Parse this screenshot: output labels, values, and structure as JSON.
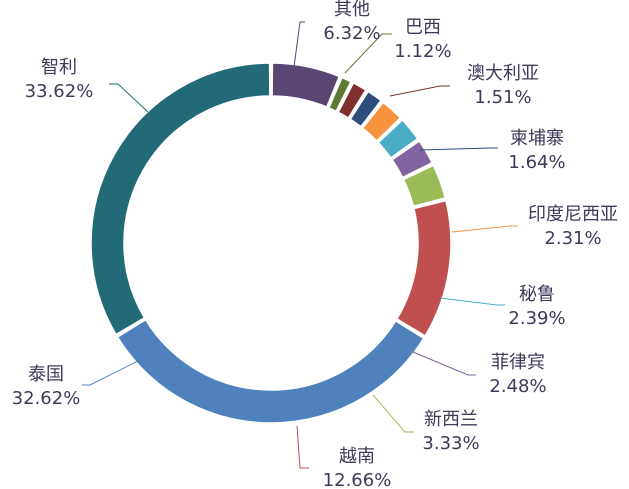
{
  "chart_data": {
    "type": "pie",
    "variant": "donut",
    "categories": [
      "其他",
      "巴西",
      "澳大利亚",
      "柬埔寨",
      "印度尼西亚",
      "秘鲁",
      "菲律宾",
      "新西兰",
      "越南",
      "泰国",
      "智利"
    ],
    "series": [
      {
        "values": [
          6.32,
          1.12,
          1.51,
          1.64,
          2.31,
          2.39,
          2.48,
          3.33,
          12.66,
          32.62,
          33.62
        ]
      }
    ],
    "value_labels": [
      "6.32%",
      "1.12%",
      "1.51%",
      "1.64%",
      "2.31%",
      "2.39%",
      "2.48%",
      "3.33%",
      "12.66%",
      "32.62%",
      "33.62%"
    ],
    "start_angle_deg": 0,
    "direction": "clockwise",
    "colors": [
      "#5a4673",
      "#5f7a34",
      "#7e2f2e",
      "#2d4e7c",
      "#f7923f",
      "#4aacc5",
      "#8064a2",
      "#9bbb59",
      "#c0504d",
      "#4f81bd",
      "#236a79"
    ],
    "leader_line_colors": [
      "#5a4673",
      "#5f7a34",
      "#7e2f2e",
      "#2d4e7c",
      "#f7923f",
      "#4aacc5",
      "#8064a2",
      "#9bbb59",
      "#c0504d",
      "#4f81bd",
      "#236a79"
    ],
    "legend": "none",
    "title": ""
  }
}
